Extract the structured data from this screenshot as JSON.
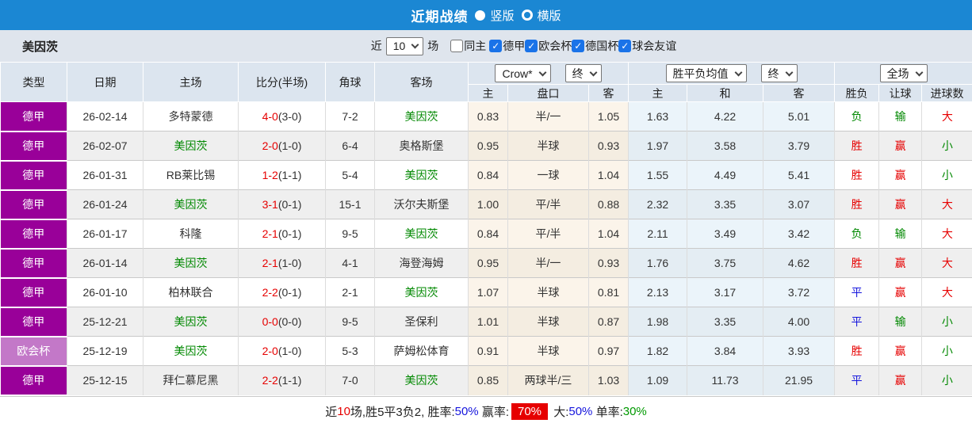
{
  "icons": {
    "dropdown": "chevron-down-icon",
    "checkbox_check": "check-icon",
    "radio_selected": "filled-circle-icon",
    "radio_unselected": "ring-circle-icon"
  },
  "titlebar": {
    "title": "近期战绩",
    "radios": [
      {
        "label": "竖版",
        "selected": true
      },
      {
        "label": "横版",
        "selected": false
      }
    ]
  },
  "filterbar": {
    "team": "美因茨",
    "recent_label": "近",
    "recent_value": "10",
    "recent_suffix": "场",
    "checkboxes": [
      {
        "label": "同主",
        "checked": false
      },
      {
        "label": "德甲",
        "checked": true
      },
      {
        "label": "欧会杯",
        "checked": true
      },
      {
        "label": "德国杯",
        "checked": true
      },
      {
        "label": "球会友谊",
        "checked": true
      }
    ]
  },
  "table": {
    "static_headers": [
      "类型",
      "日期",
      "主场",
      "比分(半场)",
      "角球",
      "客场"
    ],
    "group_selects": [
      {
        "label": "Crow*"
      },
      {
        "label": "终"
      },
      {
        "label": "胜平负均值"
      },
      {
        "label": "终"
      },
      {
        "label": "全场"
      }
    ],
    "sub_headers": [
      "主",
      "盘口",
      "客",
      "主",
      "和",
      "客",
      "胜负",
      "让球",
      "进球数"
    ],
    "rows": [
      {
        "type": "德甲",
        "type_color": "#990099",
        "date": "26-02-14",
        "home": "多特蒙德",
        "home_is_focus": false,
        "score": "4-0",
        "half": "(3-0)",
        "corner": "7-2",
        "away": "美因茨",
        "away_is_focus": true,
        "odds_home": "0.83",
        "handicap": "半/一",
        "odds_away": "1.05",
        "avg_home": "1.63",
        "avg_draw": "4.22",
        "avg_away": "5.01",
        "result": "负",
        "result_color": "green",
        "handicap_result": "输",
        "handicap_color": "green",
        "goals": "大",
        "goals_color": "red"
      },
      {
        "type": "德甲",
        "type_color": "#990099",
        "date": "26-02-07",
        "home": "美因茨",
        "home_is_focus": true,
        "score": "2-0",
        "half": "(1-0)",
        "corner": "6-4",
        "away": "奥格斯堡",
        "away_is_focus": false,
        "odds_home": "0.95",
        "handicap": "半球",
        "odds_away": "0.93",
        "avg_home": "1.97",
        "avg_draw": "3.58",
        "avg_away": "3.79",
        "result": "胜",
        "result_color": "red",
        "handicap_result": "赢",
        "handicap_color": "red",
        "goals": "小",
        "goals_color": "green"
      },
      {
        "type": "德甲",
        "type_color": "#990099",
        "date": "26-01-31",
        "home": "RB莱比锡",
        "home_is_focus": false,
        "score": "1-2",
        "half": "(1-1)",
        "corner": "5-4",
        "away": "美因茨",
        "away_is_focus": true,
        "odds_home": "0.84",
        "handicap": "一球",
        "odds_away": "1.04",
        "avg_home": "1.55",
        "avg_draw": "4.49",
        "avg_away": "5.41",
        "result": "胜",
        "result_color": "red",
        "handicap_result": "赢",
        "handicap_color": "red",
        "goals": "小",
        "goals_color": "green"
      },
      {
        "type": "德甲",
        "type_color": "#990099",
        "date": "26-01-24",
        "home": "美因茨",
        "home_is_focus": true,
        "score": "3-1",
        "half": "(0-1)",
        "corner": "15-1",
        "away": "沃尔夫斯堡",
        "away_is_focus": false,
        "odds_home": "1.00",
        "handicap": "平/半",
        "odds_away": "0.88",
        "avg_home": "2.32",
        "avg_draw": "3.35",
        "avg_away": "3.07",
        "result": "胜",
        "result_color": "red",
        "handicap_result": "赢",
        "handicap_color": "red",
        "goals": "大",
        "goals_color": "red"
      },
      {
        "type": "德甲",
        "type_color": "#990099",
        "date": "26-01-17",
        "home": "科隆",
        "home_is_focus": false,
        "score": "2-1",
        "half": "(0-1)",
        "corner": "9-5",
        "away": "美因茨",
        "away_is_focus": true,
        "odds_home": "0.84",
        "handicap": "平/半",
        "odds_away": "1.04",
        "avg_home": "2.11",
        "avg_draw": "3.49",
        "avg_away": "3.42",
        "result": "负",
        "result_color": "green",
        "handicap_result": "输",
        "handicap_color": "green",
        "goals": "大",
        "goals_color": "red"
      },
      {
        "type": "德甲",
        "type_color": "#990099",
        "date": "26-01-14",
        "home": "美因茨",
        "home_is_focus": true,
        "score": "2-1",
        "half": "(1-0)",
        "corner": "4-1",
        "away": "海登海姆",
        "away_is_focus": false,
        "odds_home": "0.95",
        "handicap": "半/一",
        "odds_away": "0.93",
        "avg_home": "1.76",
        "avg_draw": "3.75",
        "avg_away": "4.62",
        "result": "胜",
        "result_color": "red",
        "handicap_result": "赢",
        "handicap_color": "red",
        "goals": "大",
        "goals_color": "red"
      },
      {
        "type": "德甲",
        "type_color": "#990099",
        "date": "26-01-10",
        "home": "柏林联合",
        "home_is_focus": false,
        "score": "2-2",
        "half": "(0-1)",
        "corner": "2-1",
        "away": "美因茨",
        "away_is_focus": true,
        "odds_home": "1.07",
        "handicap": "半球",
        "odds_away": "0.81",
        "avg_home": "2.13",
        "avg_draw": "3.17",
        "avg_away": "3.72",
        "result": "平",
        "result_color": "blue",
        "handicap_result": "赢",
        "handicap_color": "red",
        "goals": "大",
        "goals_color": "red"
      },
      {
        "type": "德甲",
        "type_color": "#990099",
        "date": "25-12-21",
        "home": "美因茨",
        "home_is_focus": true,
        "score": "0-0",
        "half": "(0-0)",
        "corner": "9-5",
        "away": "圣保利",
        "away_is_focus": false,
        "odds_home": "1.01",
        "handicap": "半球",
        "odds_away": "0.87",
        "avg_home": "1.98",
        "avg_draw": "3.35",
        "avg_away": "4.00",
        "result": "平",
        "result_color": "blue",
        "handicap_result": "输",
        "handicap_color": "green",
        "goals": "小",
        "goals_color": "green"
      },
      {
        "type": "欧会杯",
        "type_color": "#c378c8",
        "date": "25-12-19",
        "home": "美因茨",
        "home_is_focus": true,
        "score": "2-0",
        "half": "(1-0)",
        "corner": "5-3",
        "away": "萨姆松体育",
        "away_is_focus": false,
        "odds_home": "0.91",
        "handicap": "半球",
        "odds_away": "0.97",
        "avg_home": "1.82",
        "avg_draw": "3.84",
        "avg_away": "3.93",
        "result": "胜",
        "result_color": "red",
        "handicap_result": "赢",
        "handicap_color": "red",
        "goals": "小",
        "goals_color": "green"
      },
      {
        "type": "德甲",
        "type_color": "#990099",
        "date": "25-12-15",
        "home": "拜仁慕尼黑",
        "home_is_focus": false,
        "score": "2-2",
        "half": "(1-1)",
        "corner": "7-0",
        "away": "美因茨",
        "away_is_focus": true,
        "odds_home": "0.85",
        "handicap": "两球半/三",
        "odds_away": "1.03",
        "avg_home": "1.09",
        "avg_draw": "11.73",
        "avg_away": "21.95",
        "result": "平",
        "result_color": "blue",
        "handicap_result": "赢",
        "handicap_color": "red",
        "goals": "小",
        "goals_color": "green"
      }
    ]
  },
  "summary": {
    "parts": [
      {
        "text": "近",
        "style": "black"
      },
      {
        "text": "10",
        "style": "red"
      },
      {
        "text": "场,胜5平3负2, 胜率:",
        "style": "black"
      },
      {
        "text": "50%",
        "style": "blue"
      },
      {
        "text": " 赢率:",
        "style": "black"
      },
      {
        "text": "70%",
        "style": "badge"
      },
      {
        "text": " 大:",
        "style": "black"
      },
      {
        "text": "50%",
        "style": "blue"
      },
      {
        "text": " 单率:",
        "style": "black"
      },
      {
        "text": "30%",
        "style": "green"
      }
    ]
  }
}
